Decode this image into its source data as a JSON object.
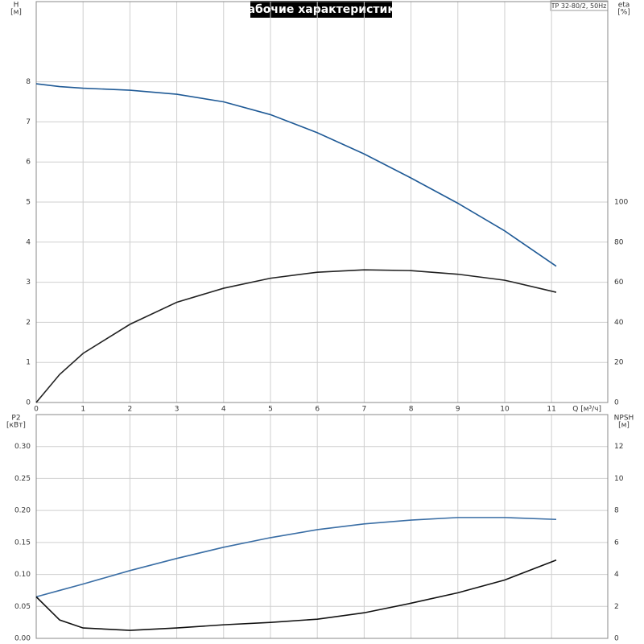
{
  "chart_data": [
    {
      "type": "line",
      "title": "Рабочие характеристики",
      "label_box": "TP 32-80/2, 50Hz",
      "y_label": "H",
      "y_unit": "[м]",
      "y2_label": "eta",
      "y2_unit": "[%]",
      "x_label": "Q [м³/ч]",
      "x": [
        0,
        0.5,
        1,
        2,
        3,
        4,
        5,
        6,
        7,
        8,
        9,
        10,
        11.1
      ],
      "xlim": [
        0,
        12.2
      ],
      "xticks": [
        0,
        1,
        2,
        3,
        4,
        5,
        6,
        7,
        8,
        9,
        10,
        11
      ],
      "ylim": [
        0,
        10
      ],
      "yticks": [
        0,
        1,
        2,
        3,
        4,
        5,
        6,
        7,
        8
      ],
      "y2lim": [
        0,
        200
      ],
      "y2ticks": [
        0,
        20,
        40,
        60,
        80,
        100
      ],
      "grid": true,
      "series": [
        {
          "color": "#1f5a96",
          "values": [
            7.95,
            7.88,
            7.84,
            7.79,
            7.69,
            7.5,
            7.18,
            6.73,
            6.2,
            5.6,
            4.97,
            4.28,
            3.4
          ]
        },
        {
          "color": "#222222",
          "axis": "y2",
          "values": [
            0,
            14,
            24.5,
            39,
            50,
            57,
            62,
            65,
            66.2,
            65.8,
            64,
            61,
            55
          ]
        }
      ]
    },
    {
      "type": "line",
      "y_label": "P2",
      "y_unit": "[кВт]",
      "y2_label": "NPSH",
      "y2_unit": "[м]",
      "x": [
        0,
        0.5,
        1,
        2,
        3,
        4,
        5,
        6,
        7,
        8,
        9,
        10,
        11.1
      ],
      "xlim": [
        0,
        12.2
      ],
      "ylim": [
        0,
        0.35
      ],
      "yticks": [
        {
          "value": 0,
          "label": "0.00"
        },
        {
          "value": 0.05,
          "label": "0.05"
        },
        {
          "value": 0.1,
          "label": "0.10"
        },
        {
          "value": 0.15,
          "label": "0.15"
        },
        {
          "value": 0.2,
          "label": "0.20"
        },
        {
          "value": 0.25,
          "label": "0.25"
        },
        {
          "value": 0.3,
          "label": "0.30"
        }
      ],
      "y2lim": [
        0,
        14
      ],
      "y2ticks": [
        0,
        2,
        4,
        6,
        8,
        10,
        12
      ],
      "grid": true,
      "series": [
        {
          "color": "#3a6ea5",
          "values": [
            0.065,
            0.075,
            0.085,
            0.106,
            0.125,
            0.1425,
            0.1575,
            0.17,
            0.179,
            0.185,
            0.189,
            0.189,
            0.186
          ]
        },
        {
          "color": "#111111",
          "axis": "y2",
          "values": [
            2.6,
            1.15,
            0.65,
            0.5,
            0.65,
            0.85,
            1.0,
            1.2,
            1.6,
            2.2,
            2.85,
            3.65,
            4.9
          ]
        }
      ]
    }
  ]
}
